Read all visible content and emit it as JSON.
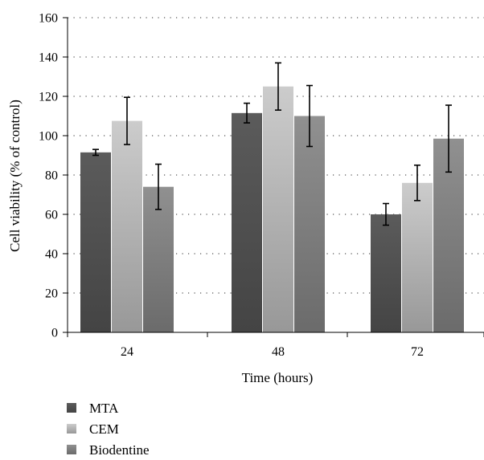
{
  "chart_data": {
    "type": "bar",
    "categories": [
      "24",
      "48",
      "72"
    ],
    "series": [
      {
        "name": "MTA",
        "values": [
          91.5,
          111.5,
          60
        ],
        "errors": [
          1.5,
          5,
          5.5
        ],
        "color": "#4d4d4d"
      },
      {
        "name": "CEM",
        "values": [
          107.5,
          125,
          76
        ],
        "errors": [
          12,
          12,
          9
        ],
        "color": "#adadad"
      },
      {
        "name": "Biodentine",
        "values": [
          74,
          110,
          98.5
        ],
        "errors": [
          11.5,
          15.5,
          17
        ],
        "color": "#7a7a7a"
      }
    ],
    "xlabel": "Time (hours)",
    "ylabel": "Cell viability (% of control)",
    "ylim": [
      0,
      160
    ],
    "yticks": [
      0,
      20,
      40,
      60,
      80,
      100,
      120,
      140,
      160
    ],
    "grid": "horizontal dotted",
    "legend_position": "bottom-left"
  }
}
